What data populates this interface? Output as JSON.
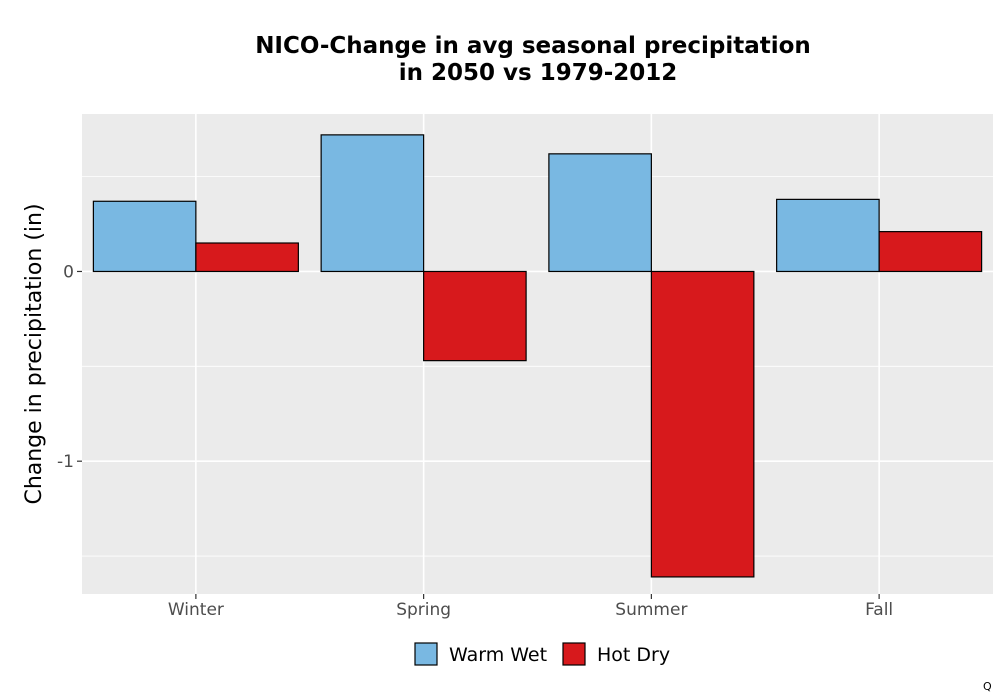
{
  "chart_data": {
    "type": "bar",
    "title_lines": [
      "NICO-Change in avg seasonal precipitation",
      "in 2050 vs 1979-2012"
    ],
    "xlabel": "",
    "ylabel": "Change in precipitation (in)",
    "categories": [
      "Winter",
      "Spring",
      "Summer",
      "Fall"
    ],
    "series": [
      {
        "name": "Warm Wet",
        "color": "#79b8e2",
        "values": [
          0.37,
          0.72,
          0.62,
          0.38
        ]
      },
      {
        "name": "Hot Dry",
        "color": "#d7191c",
        "values": [
          0.15,
          -0.47,
          -1.61,
          0.21
        ]
      }
    ],
    "ylim": [
      -1.7,
      0.83
    ],
    "yticks": [
      0,
      -1
    ],
    "ytick_labels": [
      "0",
      "-1"
    ],
    "grid": true,
    "legend_position": "bottom",
    "panel_background": "#ebebeb"
  },
  "footnote": "Q"
}
